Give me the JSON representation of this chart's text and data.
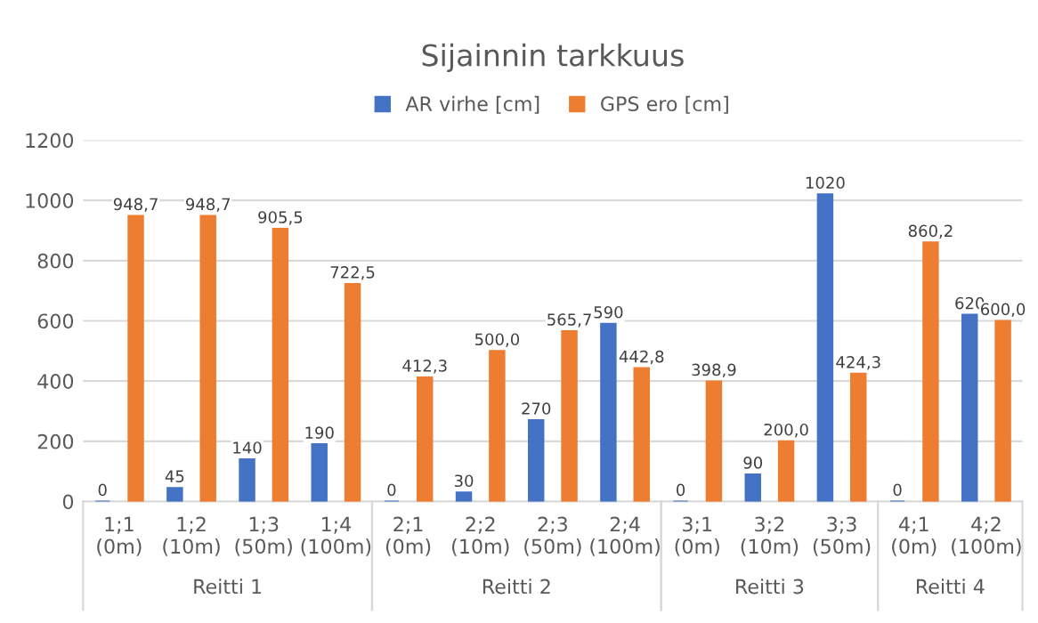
{
  "chart_data": {
    "type": "bar",
    "title": "Sijainnin tarkkuus",
    "categories": [
      "1;1\n(0m)",
      "1;2\n(10m)",
      "1;3\n(50m)",
      "1;4\n(100m)",
      "2;1\n(0m)",
      "2;2\n(10m)",
      "2;3\n(50m)",
      "2;4\n(100m)",
      "3;1\n(0m)",
      "3;2\n(10m)",
      "3;3\n(50m)",
      "4;1\n(0m)",
      "4;2\n(100m)"
    ],
    "series": [
      {
        "name": "AR virhe [cm]",
        "color": "#4472c4",
        "values": [
          0,
          45,
          140,
          190,
          0,
          30,
          270,
          590,
          0,
          90,
          1020,
          0,
          620
        ],
        "value_labels": [
          "0",
          "45",
          "140",
          "190",
          "0",
          "30",
          "270",
          "590",
          "0",
          "90",
          "1020",
          "0",
          "620"
        ]
      },
      {
        "name": "GPS ero [cm]",
        "color": "#ed7d31",
        "values": [
          948.7,
          948.7,
          905.5,
          722.5,
          412.3,
          500.0,
          565.7,
          442.8,
          398.9,
          200.0,
          424.3,
          860.2,
          600.0
        ],
        "value_labels": [
          "948,7",
          "948,7",
          "905,5",
          "722,5",
          "412,3",
          "500,0",
          "565,7",
          "442,8",
          "398,9",
          "200,0",
          "424,3",
          "860,2",
          "600,0"
        ]
      }
    ],
    "ylim": [
      0,
      1200
    ],
    "yticks": [
      0,
      200,
      400,
      600,
      800,
      1000,
      1200
    ],
    "grid": "y",
    "legend": "top",
    "annotations": [
      "Reitti 1",
      "Reitti 2",
      "Reitti 3",
      "Reitti 4"
    ]
  }
}
